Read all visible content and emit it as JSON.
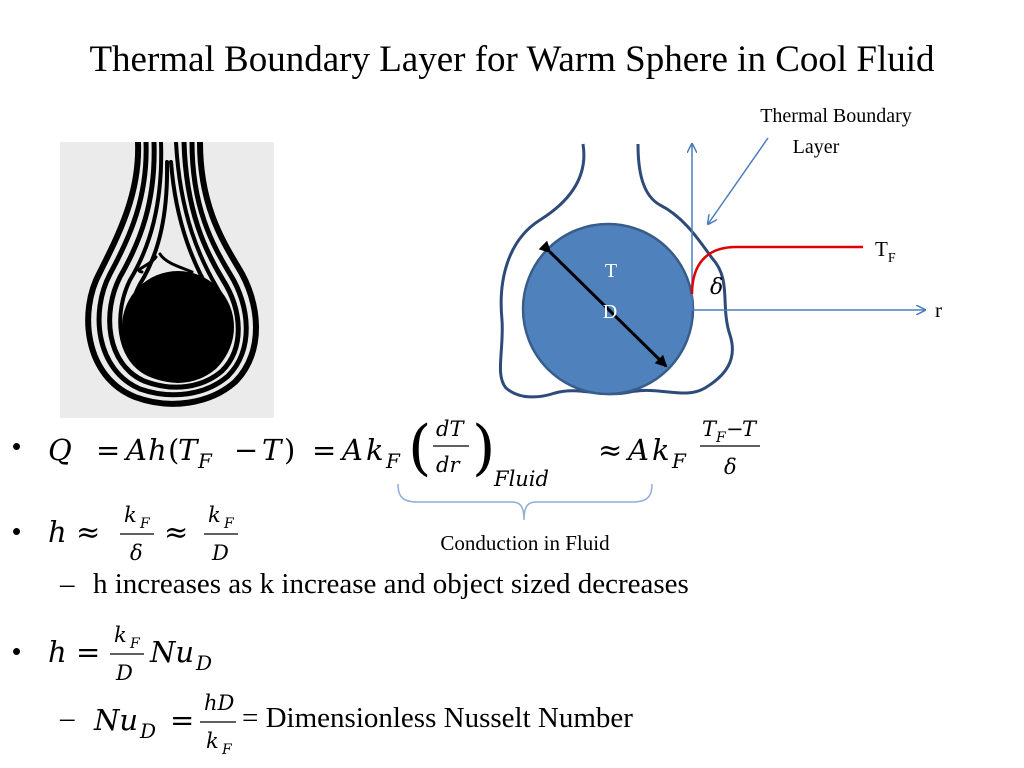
{
  "slide": {
    "title": "Thermal Boundary Layer for Warm Sphere in Cool Fluid"
  },
  "diagram": {
    "boundary_label_line1": "Thermal Boundary",
    "boundary_label_line2": "Layer",
    "tf_main": "T",
    "tf_sub": "F",
    "sphere_t": "T",
    "sphere_d": "D",
    "delta": "δ",
    "r_axis": "r",
    "colors": {
      "sphere": "#4f81bd",
      "sphere_edge": "#385d8a",
      "layer": "#2e4a7a",
      "axis": "#4a7ebb",
      "profile": "#e00000"
    }
  },
  "brace": {
    "label": "Conduction in Fluid"
  },
  "bullets": [
    {
      "id": "q-equation",
      "marker": "•"
    },
    {
      "id": "h-approx",
      "marker": "•"
    },
    {
      "id": "h-nusselt",
      "marker": "•"
    }
  ],
  "sub_bullets": [
    {
      "marker": "–",
      "text": "h increases as k increase and object sized decreases"
    },
    {
      "marker": "–",
      "suffix": "= Dimensionless Nusselt Number"
    }
  ],
  "math": {
    "Q": "Q",
    "A": "A",
    "h": "h",
    "k": "k",
    "T": "T",
    "F": "F",
    "dT": "dT",
    "dr": "dr",
    "Fluid": "Fluid",
    "delta": "δ",
    "D": "D",
    "Nu": "Nu",
    "hD": "hD",
    "eq": "=",
    "approx": "≈",
    "minus": "−",
    "lparen": "(",
    "rparen": ")"
  }
}
